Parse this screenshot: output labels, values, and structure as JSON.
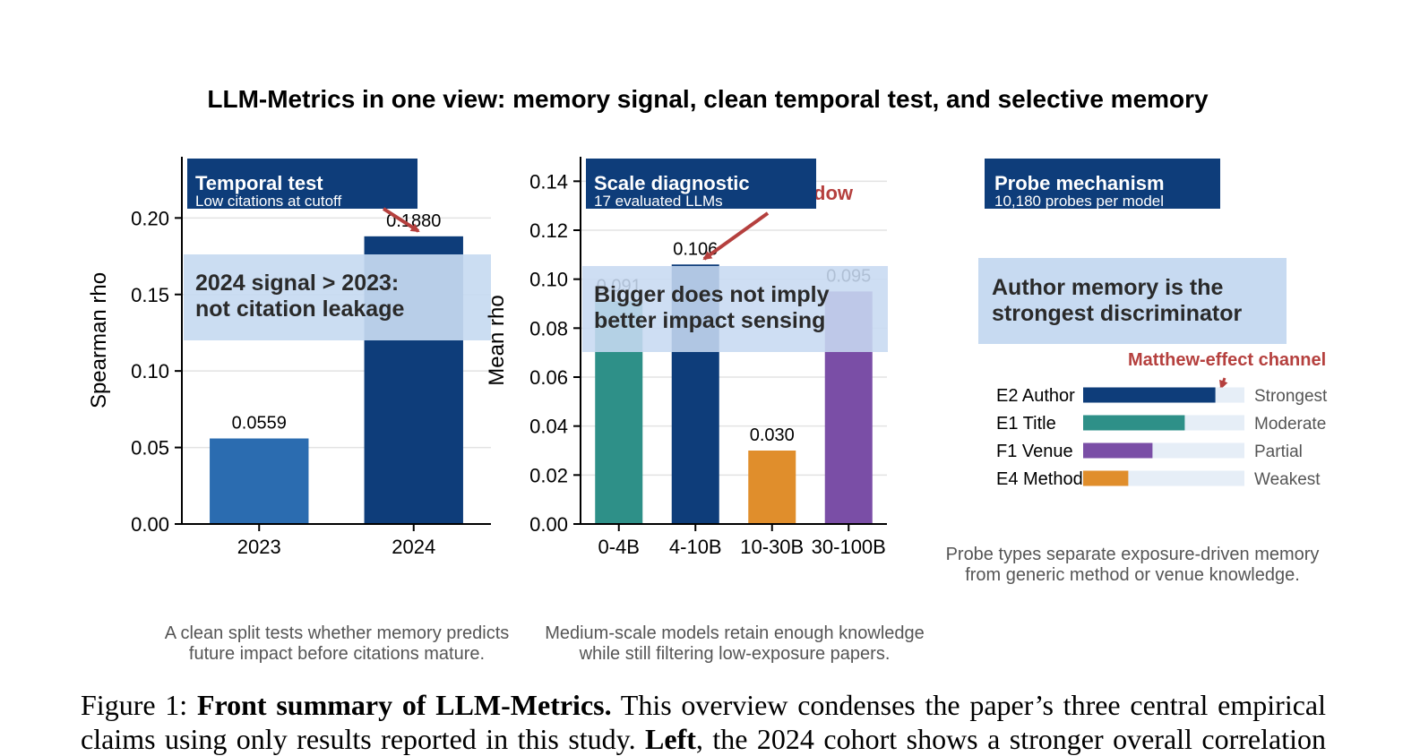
{
  "figure": {
    "title": "LLM-Metrics in one view: memory signal, clean temporal test, and selective memory",
    "colors": {
      "navy": "#0e3d7a",
      "mid_blue": "#2b6cb0",
      "teal": "#2e9088",
      "orange": "#e08e2c",
      "purple": "#7a4ea6",
      "highlight_box": "#c7daf1",
      "arrow_red": "#b5403e",
      "track": "#e6eef7",
      "grid": "#e3e3e3"
    },
    "panels": {
      "left": {
        "banner_title": "Temporal test",
        "banner_subtitle": "Low citations at cutoff",
        "highlight_line1": "2024 signal > 2023:",
        "highlight_line2": "not citation leakage",
        "footer_line1": "A clean split tests whether memory predicts",
        "footer_line2": "future impact before citations mature."
      },
      "middle": {
        "banner_title": "Scale diagnostic",
        "banner_subtitle": "17 evaluated LLMs",
        "annotation_partial": "dow",
        "highlight_line1": "Bigger does not imply",
        "highlight_line2": "better impact sensing",
        "footer_line1": "Medium-scale models retain enough knowledge",
        "footer_line2": "while still filtering low-exposure papers."
      },
      "right": {
        "banner_title": "Probe mechanism",
        "banner_subtitle": "10,180 probes per model",
        "highlight_line1": "Author memory is the",
        "highlight_line2": "strongest discriminator",
        "annotation": "Matthew-effect channel",
        "footer_line1": "Probe types separate exposure-driven memory",
        "footer_line2": "from generic method or venue knowledge."
      }
    }
  },
  "caption": {
    "prefix": "Figure 1: ",
    "bold": "Front summary of LLM-Metrics.",
    "line1_rest": " This overview condenses the paper’s three central empirical",
    "line2_start": "claims using only results reported in this study. ",
    "line2_bold": "Left",
    "line2_rest": ", the 2024 cohort shows a stronger overall correlation"
  },
  "chart_data": [
    {
      "type": "bar",
      "categories": [
        "2023",
        "2024"
      ],
      "values": [
        0.0559,
        0.188
      ],
      "data_labels": [
        "0.0559",
        "0.1880"
      ],
      "ylabel": "Spearman rho",
      "ylim": [
        0,
        0.24
      ],
      "yticks": [
        0.0,
        0.05,
        0.1,
        0.15,
        0.2
      ],
      "ytick_labels": [
        "0.00",
        "0.05",
        "0.10",
        "0.15",
        "0.20"
      ],
      "colors": [
        "#2b6cb0",
        "#0e3d7a"
      ],
      "grid": true
    },
    {
      "type": "bar",
      "categories": [
        "0-4B",
        "4-10B",
        "10-30B",
        "30-100B"
      ],
      "values": [
        0.091,
        0.106,
        0.03,
        0.095
      ],
      "data_labels": [
        "0.091",
        "0.106",
        "0.030",
        "0.095"
      ],
      "ylabel": "Mean rho",
      "ylim": [
        0,
        0.15
      ],
      "yticks": [
        0.0,
        0.02,
        0.04,
        0.06,
        0.08,
        0.1,
        0.12,
        0.14
      ],
      "ytick_labels": [
        "0.00",
        "0.02",
        "0.04",
        "0.06",
        "0.08",
        "0.10",
        "0.12",
        "0.14"
      ],
      "colors": [
        "#2e9088",
        "#0e3d7a",
        "#e08e2c",
        "#7a4ea6"
      ],
      "grid": true
    },
    {
      "type": "bar",
      "orientation": "horizontal",
      "categories": [
        "E2 Author",
        "E1 Title",
        "F1 Venue",
        "E4 Method"
      ],
      "values": [
        0.82,
        0.63,
        0.43,
        0.28
      ],
      "strength_labels": [
        "Strongest",
        "Moderate",
        "Partial",
        "Weakest"
      ],
      "colors": [
        "#0e3d7a",
        "#2e9088",
        "#7a4ea6",
        "#e08e2c"
      ]
    }
  ]
}
